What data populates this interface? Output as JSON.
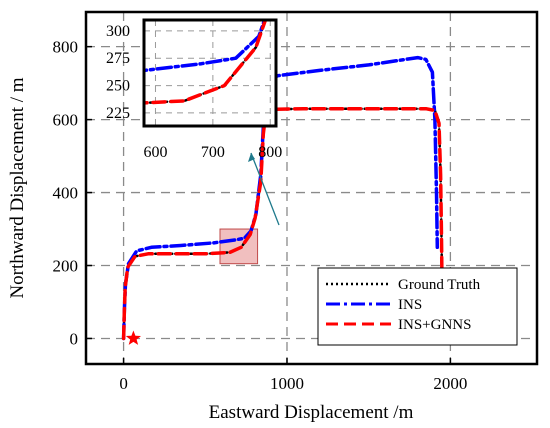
{
  "chart_data": {
    "type": "line",
    "xlabel": "Eastward Displacement /m",
    "ylabel": "Northward Displacement / m",
    "xlim": [
      -230,
      2530
    ],
    "ylim": [
      -70,
      895
    ],
    "xticks": [
      0,
      1000,
      2000
    ],
    "yticks": [
      0,
      200,
      400,
      600,
      800
    ],
    "grid": true,
    "legend": "bottom-right",
    "start_marker": {
      "x": 60,
      "y": 0,
      "shape": "star",
      "color": "#ff0000"
    },
    "series": [
      {
        "name": "Ground Truth",
        "color": "#000000",
        "style": "dotted",
        "points": [
          [
            0,
            0
          ],
          [
            5,
            80
          ],
          [
            10,
            140
          ],
          [
            25,
            195
          ],
          [
            70,
            225
          ],
          [
            150,
            232
          ],
          [
            350,
            232
          ],
          [
            500,
            232
          ],
          [
            650,
            236
          ],
          [
            720,
            250
          ],
          [
            775,
            285
          ],
          [
            805,
            330
          ],
          [
            840,
            430
          ],
          [
            855,
            560
          ],
          [
            868,
            610
          ],
          [
            900,
            628
          ],
          [
            1100,
            630
          ],
          [
            1850,
            630
          ],
          [
            1905,
            625
          ],
          [
            1930,
            590
          ],
          [
            1940,
            450
          ],
          [
            1945,
            300
          ],
          [
            1948,
            180
          ]
        ]
      },
      {
        "name": "INS",
        "color": "#0000ff",
        "style": "dash-dot",
        "points": [
          [
            0,
            0
          ],
          [
            5,
            80
          ],
          [
            12,
            150
          ],
          [
            30,
            205
          ],
          [
            80,
            240
          ],
          [
            170,
            250
          ],
          [
            350,
            255
          ],
          [
            550,
            262
          ],
          [
            680,
            270
          ],
          [
            740,
            275
          ],
          [
            780,
            295
          ],
          [
            810,
            340
          ],
          [
            840,
            450
          ],
          [
            860,
            620
          ],
          [
            880,
            690
          ],
          [
            940,
            720
          ],
          [
            1200,
            735
          ],
          [
            1500,
            750
          ],
          [
            1800,
            770
          ],
          [
            1850,
            765
          ],
          [
            1890,
            730
          ],
          [
            1905,
            600
          ],
          [
            1915,
            400
          ],
          [
            1920,
            250
          ]
        ]
      },
      {
        "name": "INS+GNNS",
        "color": "#ff0000",
        "style": "dashed",
        "points": [
          [
            0,
            0
          ],
          [
            5,
            80
          ],
          [
            10,
            140
          ],
          [
            25,
            195
          ],
          [
            70,
            225
          ],
          [
            150,
            232
          ],
          [
            350,
            232
          ],
          [
            500,
            232
          ],
          [
            650,
            236
          ],
          [
            720,
            250
          ],
          [
            775,
            285
          ],
          [
            805,
            330
          ],
          [
            840,
            430
          ],
          [
            855,
            560
          ],
          [
            868,
            610
          ],
          [
            900,
            628
          ],
          [
            1100,
            630
          ],
          [
            1850,
            630
          ],
          [
            1905,
            625
          ],
          [
            1930,
            590
          ],
          [
            1940,
            450
          ],
          [
            1945,
            300
          ],
          [
            1948,
            180
          ]
        ]
      }
    ],
    "highlight_box": {
      "x": [
        590,
        820
      ],
      "y": [
        205,
        300
      ],
      "color": "#e07070"
    },
    "inset": {
      "xlim": [
        580,
        810
      ],
      "ylim": [
        213,
        310
      ],
      "xticks": [
        600,
        700,
        800
      ],
      "yticks": [
        225,
        250,
        275,
        300
      ]
    }
  }
}
